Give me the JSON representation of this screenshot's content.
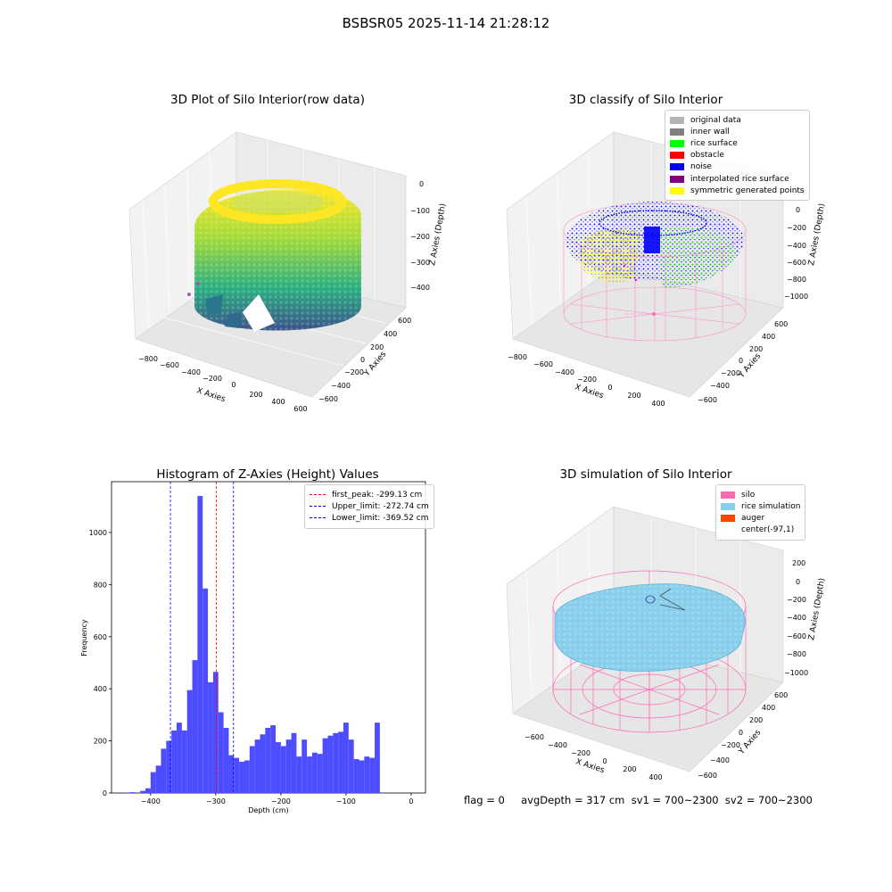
{
  "suptitle": "BSBSR05 2025-11-14 21:28:12",
  "panels": {
    "raw": {
      "title": "3D Plot of Silo Interior(row data)",
      "xlabel": "X Axies",
      "ylabel": "Y Axies",
      "zlabel": "Z Axies (Depth)",
      "xticks": [
        "−800",
        "−600",
        "−400",
        "−200",
        "0",
        "200",
        "400",
        "600"
      ],
      "yticks": [
        "600",
        "400",
        "200",
        "0",
        "−200",
        "−400",
        "−600"
      ],
      "zticks": [
        "0",
        "−100",
        "−200",
        "−300",
        "−400"
      ]
    },
    "classify": {
      "title": "3D classify of Silo Interior",
      "xlabel": "X Axies",
      "ylabel": "Y Axies",
      "zlabel": "Z Axies (Depth)",
      "xticks": [
        "−800",
        "−600",
        "−400",
        "−200",
        "0",
        "200",
        "400"
      ],
      "yticks": [
        "600",
        "400",
        "200",
        "0",
        "−200",
        "−400",
        "−600"
      ],
      "zticks": [
        "200",
        "0",
        "−200",
        "−400",
        "−600",
        "−800",
        "−1000"
      ],
      "legend": [
        {
          "label": "original data",
          "color": "#b4b4b4"
        },
        {
          "label": "inner wall",
          "color": "#808080"
        },
        {
          "label": "rice surface",
          "color": "#00ff00"
        },
        {
          "label": "obstacle",
          "color": "#ff0000"
        },
        {
          "label": "noise",
          "color": "#0000ff"
        },
        {
          "label": "interpolated rice surface",
          "color": "#800080"
        },
        {
          "label": "symmetric generated points",
          "color": "#ffff00"
        }
      ]
    },
    "simulation": {
      "title": "3D simulation of Silo Interior",
      "xlabel": "X Axies",
      "ylabel": "Y Axies",
      "zlabel": "Z Axies (Depth)",
      "xticks": [
        "−600",
        "−400",
        "−200",
        "0",
        "200",
        "400"
      ],
      "yticks": [
        "600",
        "400",
        "200",
        "0",
        "−200",
        "−400",
        "−600"
      ],
      "zticks": [
        "200",
        "0",
        "−200",
        "−400",
        "−600",
        "−800",
        "−1000"
      ],
      "legend": [
        {
          "label": "silo",
          "color": "#ff69b4"
        },
        {
          "label": "rice simulation",
          "color": "#87ceeb"
        },
        {
          "label": "auger",
          "color": "#ff4500"
        },
        {
          "label": "center(-97,1)",
          "color": ""
        }
      ]
    }
  },
  "footer": "flag = 0     avgDepth = 317 cm  sv1 = 700~2300  sv2 = 700~2300",
  "chart_data": {
    "type": "bar",
    "title": "Histogram of Z-Axies (Height) Values",
    "xlabel": "Depth (cm)",
    "ylabel": "Frequency",
    "xlim": [
      -460,
      22
    ],
    "ylim": [
      0,
      1195
    ],
    "xticks": [
      -400,
      -300,
      -200,
      -100,
      0
    ],
    "yticks": [
      0,
      200,
      400,
      600,
      800,
      1000
    ],
    "bar_color": "#4d4dff",
    "bin_width": 8,
    "bin_start": -440,
    "values": [
      2,
      3,
      0,
      8,
      18,
      80,
      105,
      170,
      200,
      240,
      270,
      240,
      395,
      510,
      1140,
      785,
      425,
      465,
      310,
      250,
      145,
      135,
      120,
      125,
      180,
      205,
      225,
      250,
      260,
      195,
      180,
      205,
      230,
      140,
      205,
      140,
      155,
      150,
      210,
      220,
      230,
      235,
      270,
      205,
      130,
      125,
      140,
      135,
      270
    ],
    "lines": [
      {
        "label": "first_peak: -299.13 cm",
        "x": -299.13,
        "color": "#ff0000"
      },
      {
        "label": "Upper_limit: -272.74 cm",
        "x": -272.74,
        "color": "#0000ff"
      },
      {
        "label": "Lower_limit: -369.52 cm",
        "x": -369.52,
        "color": "#0000ff"
      }
    ],
    "legend_position": "upper right"
  }
}
